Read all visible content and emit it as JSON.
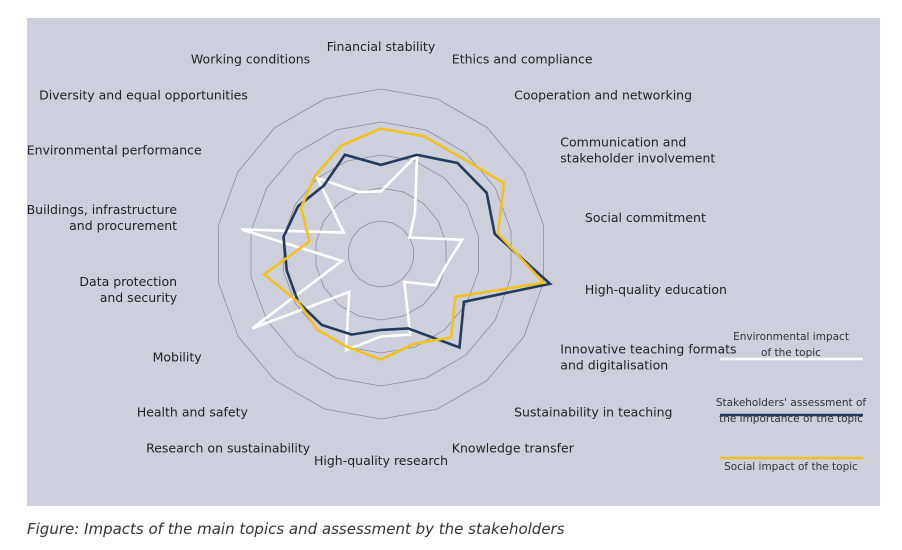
{
  "caption": "Figure: Impacts of the main topics and assessment by the stakeholders",
  "chart_data": {
    "type": "radar",
    "categories": [
      [
        "Financial stability"
      ],
      [
        "Ethics and compliance"
      ],
      [
        "Cooperation and networking"
      ],
      [
        "Communication and",
        "stakeholder involvement"
      ],
      [
        "Social commitment"
      ],
      [
        "High-quality education"
      ],
      [
        "Innovative teaching formats",
        "and digitalisation"
      ],
      [
        "Sustainability in teaching"
      ],
      [
        "Knowledge transfer"
      ],
      [
        "High-quality research"
      ],
      [
        "Research on sustainability"
      ],
      [
        "Health and safety"
      ],
      [
        "Mobility"
      ],
      [
        "Data protection",
        "and security"
      ],
      [
        "Buildings, infrastructure",
        "and procurement"
      ],
      [
        "Environmental performance"
      ],
      [
        "Diversity and equal opportunities"
      ],
      [
        "Working conditions"
      ]
    ],
    "rings": 5,
    "rmax": 5,
    "grid": true,
    "legend_position": "right",
    "series": [
      {
        "name": "Environmental impact of the topic",
        "legend_lines": [
          "Environmental impact",
          "of the topic"
        ],
        "color": "#ffffff",
        "values": [
          1.9,
          3.2,
          1.6,
          1.0,
          2.5,
          2.0,
          1.9,
          1.1,
          2.6,
          2.5,
          3.1,
          1.5,
          4.5,
          1.2,
          4.3,
          1.3,
          3.0,
          2.0
        ]
      },
      {
        "name": "Stakeholders' assessment of the importance of the topic",
        "legend_lines": [
          "Stakeholders' assessment of",
          "the importance of the topic"
        ],
        "color": "#243a5e",
        "values": [
          2.7,
          3.2,
          3.6,
          3.7,
          3.5,
          5.2,
          2.9,
          3.7,
          2.4,
          2.3,
          2.6,
          2.8,
          2.9,
          2.9,
          3.0,
          2.9,
          2.7,
          3.2
        ]
      },
      {
        "name": "Social impact of the topic",
        "legend_lines": [
          "Social impact of the topic"
        ],
        "color": "#f2c21b",
        "values": [
          3.8,
          3.8,
          3.8,
          4.3,
          3.6,
          5.0,
          2.6,
          3.3,
          2.9,
          3.2,
          3.0,
          3.0,
          2.9,
          3.6,
          2.2,
          2.8,
          3.1,
          3.5
        ]
      }
    ]
  }
}
